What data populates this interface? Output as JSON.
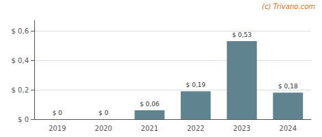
{
  "chart_data": {
    "type": "bar",
    "categories": [
      "2019",
      "2020",
      "2021",
      "2022",
      "2023",
      "2024"
    ],
    "values": [
      0,
      0,
      0.06,
      0.19,
      0.53,
      0.18
    ],
    "value_labels": [
      "$ 0",
      "$ 0",
      "$ 0,06",
      "$ 0,19",
      "$ 0,53",
      "$ 0,18"
    ],
    "data_labels": true,
    "color": "#5f848f",
    "ylim": [
      0,
      0.67
    ],
    "yticks": [
      {
        "value": 0,
        "label": "$ 0"
      },
      {
        "value": 0.2,
        "label": "$ 0,2"
      },
      {
        "value": 0.4,
        "label": "$ 0,4"
      },
      {
        "value": 0.6,
        "label": "$ 0,6"
      }
    ],
    "grid": true,
    "annotations": [
      {
        "text": "(c) Trivano.com",
        "color": "#e07020"
      }
    ]
  }
}
